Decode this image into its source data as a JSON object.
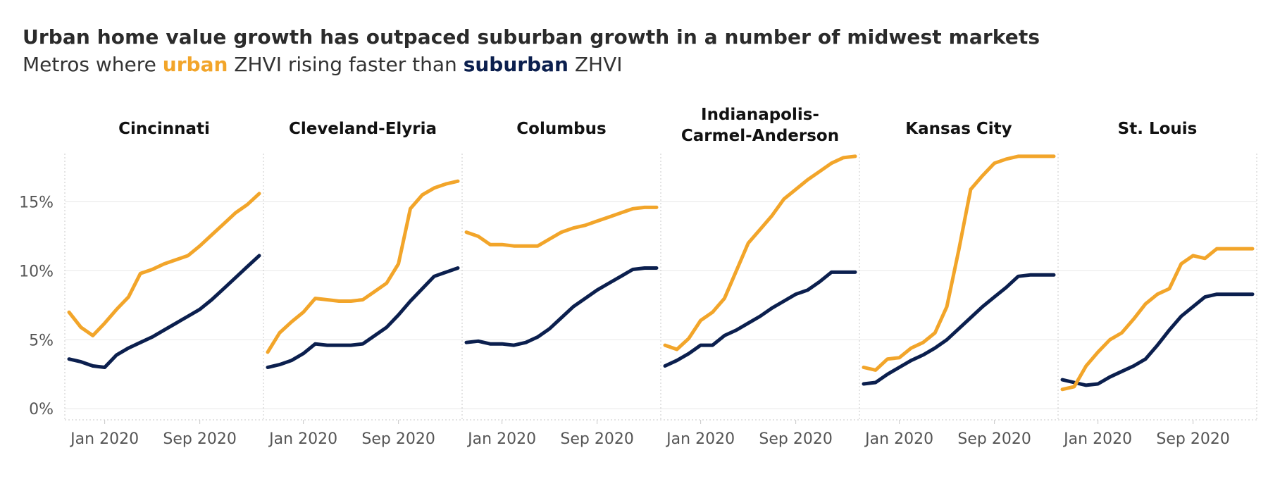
{
  "title": "Urban home value growth has outpaced suburban growth in a number of midwest markets",
  "subtitle": {
    "prefix": "Metros where ",
    "urban_word": "urban",
    "middle": " ZHVI rising faster than ",
    "suburban_word": "suburban",
    "suffix": " ZHVI"
  },
  "colors": {
    "urban": "#F2A52A",
    "suburban": "#0B1F4E",
    "grid": "#e8e8e8",
    "divider": "#c8c8c8"
  },
  "chart_data": {
    "type": "line",
    "x_ticks": [
      "Jan 2020",
      "Sep 2020"
    ],
    "y_ticks": [
      {
        "value": 0,
        "label": "0%"
      },
      {
        "value": 5,
        "label": "5%"
      },
      {
        "value": 10,
        "label": "10%"
      },
      {
        "value": 15,
        "label": "15%"
      }
    ],
    "ylim": [
      -0.5,
      18.5
    ],
    "months": [
      "Oct 2019",
      "Nov 2019",
      "Dec 2019",
      "Jan 2020",
      "Feb 2020",
      "Mar 2020",
      "Apr 2020",
      "May 2020",
      "Jun 2020",
      "Jul 2020",
      "Aug 2020",
      "Sep 2020",
      "Oct 2020",
      "Nov 2020",
      "Dec 2020",
      "Jan 2021",
      "Feb 2021"
    ],
    "panels": [
      {
        "name": "Cincinnati",
        "urban": [
          7.0,
          5.9,
          5.3,
          6.2,
          7.2,
          8.1,
          9.8,
          10.1,
          10.5,
          10.8,
          11.1,
          11.8,
          12.6,
          13.4,
          14.2,
          14.8,
          15.6
        ],
        "suburban": [
          3.6,
          3.4,
          3.1,
          3.0,
          3.9,
          4.4,
          4.8,
          5.2,
          5.7,
          6.2,
          6.7,
          7.2,
          7.9,
          8.7,
          9.5,
          10.3,
          11.1
        ]
      },
      {
        "name": "Cleveland-Elyria",
        "urban": [
          4.1,
          5.5,
          6.3,
          7.0,
          8.0,
          7.9,
          7.8,
          7.8,
          7.9,
          8.5,
          9.1,
          10.5,
          14.5,
          15.5,
          16.0,
          16.3,
          16.5
        ],
        "suburban": [
          3.0,
          3.2,
          3.5,
          4.0,
          4.7,
          4.6,
          4.6,
          4.6,
          4.7,
          5.3,
          5.9,
          6.8,
          7.8,
          8.7,
          9.6,
          9.9,
          10.2
        ]
      },
      {
        "name": "Columbus",
        "urban": [
          12.8,
          12.5,
          11.9,
          11.9,
          11.8,
          11.8,
          11.8,
          12.3,
          12.8,
          13.1,
          13.3,
          13.6,
          13.9,
          14.2,
          14.5,
          14.6,
          14.6
        ],
        "suburban": [
          4.8,
          4.9,
          4.7,
          4.7,
          4.6,
          4.8,
          5.2,
          5.8,
          6.6,
          7.4,
          8.0,
          8.6,
          9.1,
          9.6,
          10.1,
          10.2,
          10.2
        ],
        "urban_end": 14.6,
        "suburban_end": 10.2
      },
      {
        "name": "Indianapolis-\nCarmel-Anderson",
        "urban": [
          4.6,
          4.3,
          5.1,
          6.4,
          7.0,
          8.0,
          10.0,
          12.0,
          13.0,
          14.0,
          15.2,
          15.9,
          16.6,
          17.2,
          17.8,
          18.2,
          18.3
        ],
        "suburban": [
          3.1,
          3.5,
          4.0,
          4.6,
          4.6,
          5.3,
          5.7,
          6.2,
          6.7,
          7.3,
          7.8,
          8.3,
          8.6,
          9.2,
          9.9,
          9.9,
          9.9
        ]
      },
      {
        "name": "Kansas City",
        "urban": [
          3.0,
          2.8,
          3.6,
          3.7,
          4.4,
          4.8,
          5.5,
          7.4,
          11.5,
          15.9,
          16.9,
          17.8,
          18.1,
          18.3,
          18.3,
          18.3,
          18.3
        ],
        "suburban": [
          1.8,
          1.9,
          2.5,
          3.0,
          3.5,
          3.9,
          4.4,
          5.0,
          5.8,
          6.6,
          7.4,
          8.1,
          8.8,
          9.6,
          9.7,
          9.7,
          9.7
        ]
      },
      {
        "name": "St. Louis",
        "urban": [
          1.4,
          1.6,
          3.1,
          4.1,
          5.0,
          5.5,
          6.5,
          7.6,
          8.3,
          8.7,
          10.5,
          11.1,
          10.9,
          11.6,
          11.6,
          11.6,
          11.6
        ],
        "suburban": [
          2.1,
          1.9,
          1.7,
          1.8,
          2.3,
          2.7,
          3.1,
          3.6,
          4.6,
          5.7,
          6.7,
          7.4,
          8.1,
          8.3,
          8.3,
          8.3,
          8.3
        ]
      }
    ]
  }
}
